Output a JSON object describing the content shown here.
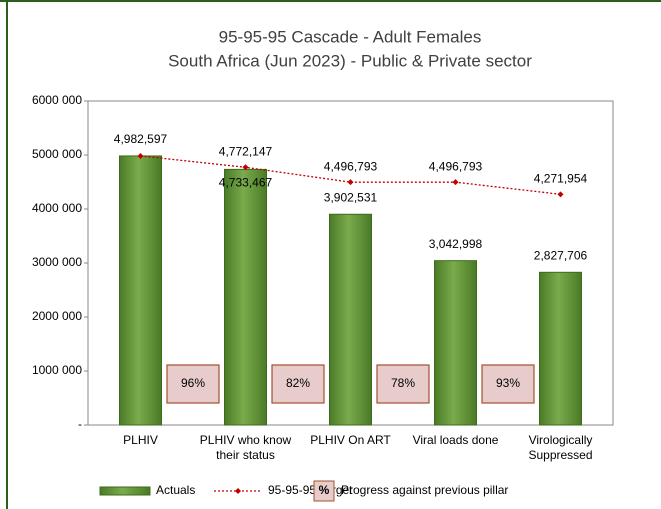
{
  "chart_data": {
    "type": "bar",
    "title": "95-95-95 Cascade - Adult Females",
    "subtitle": "South Africa (Jun 2023) - Public & Private sector",
    "categories": [
      "PLHIV",
      "PLHIV who know their status",
      "PLHIV On ART",
      "Viral loads done",
      "Virologically Suppressed"
    ],
    "series": [
      {
        "name": "Actuals",
        "color": "#5b8c32",
        "values": [
          4982597,
          4733467,
          3902531,
          3042998,
          2827706
        ],
        "value_labels": [
          "4,982,597",
          "4,733,467",
          "3,902,531",
          "3,042,998",
          "2,827,706"
        ]
      },
      {
        "name": "95-95-95 Target",
        "color": "#c00000",
        "type": "line",
        "values": [
          4982597,
          4772147,
          4496793,
          4496793,
          4271954
        ],
        "value_labels": [
          null,
          "4,772,147",
          "4,496,793",
          "4,496,793",
          "4,271,954"
        ]
      }
    ],
    "progress": {
      "name": "Progress against previous pillar",
      "symbol": "%",
      "values": [
        96,
        82,
        78,
        93
      ],
      "value_labels": [
        "96%",
        "82%",
        "78%",
        "93%"
      ]
    },
    "ylim": [
      0,
      6000000
    ],
    "yticks": [
      {
        "value": 0,
        "label": "-"
      },
      {
        "value": 1000000,
        "label": "1000 000"
      },
      {
        "value": 2000000,
        "label": "2000 000"
      },
      {
        "value": 3000000,
        "label": "3000 000"
      },
      {
        "value": 4000000,
        "label": "4000 000"
      },
      {
        "value": 5000000,
        "label": "5000 000"
      },
      {
        "value": 6000000,
        "label": "6000 000"
      }
    ]
  }
}
